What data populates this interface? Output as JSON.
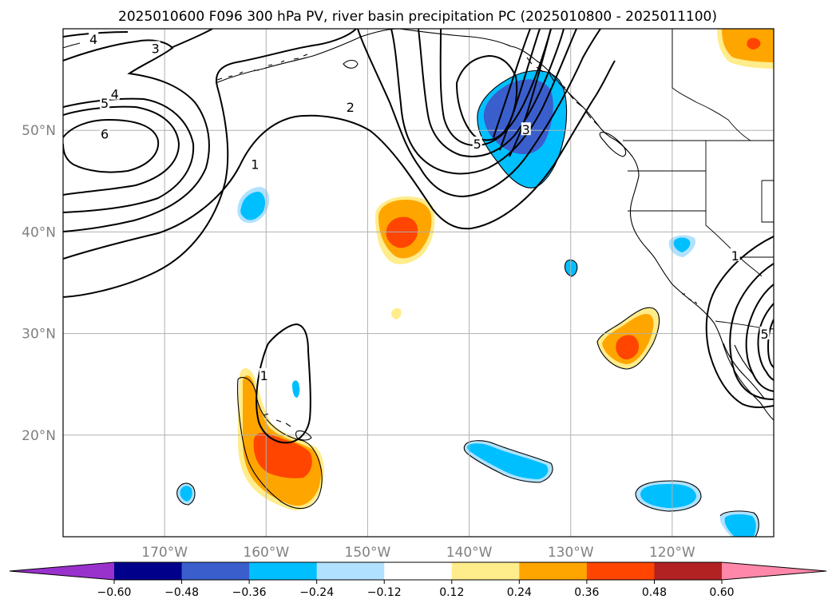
{
  "title": "2025010600 F096 300 hPa PV, river basin precipitation PC (2025010800 - 2025011100)",
  "map": {
    "lon_range": [
      -180,
      -110
    ],
    "lat_range": [
      10,
      60
    ],
    "lon_ticks": [
      {
        "value": -170,
        "label": "170°W"
      },
      {
        "value": -160,
        "label": "160°W"
      },
      {
        "value": -150,
        "label": "150°W"
      },
      {
        "value": -140,
        "label": "140°W"
      },
      {
        "value": -130,
        "label": "130°W"
      },
      {
        "value": -120,
        "label": "120°W"
      }
    ],
    "lat_ticks": [
      {
        "value": 20,
        "label": "20°N"
      },
      {
        "value": 30,
        "label": "30°N"
      },
      {
        "value": 40,
        "label": "40°N"
      },
      {
        "value": 50,
        "label": "50°N"
      }
    ],
    "grid": true,
    "gridline_color": "#b0b0b0",
    "contour_field": "300 hPa PV",
    "contour_levels": [
      1,
      2,
      3,
      4,
      5,
      6
    ],
    "contour_labels": [
      {
        "text": "4",
        "lon": -177,
        "lat": 58.9
      },
      {
        "text": "3",
        "lon": -170.9,
        "lat": 58.0
      },
      {
        "text": "4",
        "lon": -174.9,
        "lat": 53.5
      },
      {
        "text": "5",
        "lon": -175.9,
        "lat": 52.6
      },
      {
        "text": "6",
        "lon": -175.9,
        "lat": 49.6
      },
      {
        "text": "2",
        "lon": -151.7,
        "lat": 52.2
      },
      {
        "text": "1",
        "lon": -161.1,
        "lat": 46.6
      },
      {
        "text": "5",
        "lon": -139.2,
        "lat": 48.6
      },
      {
        "text": "3",
        "lon": -134.4,
        "lat": 50.0
      },
      {
        "text": "1",
        "lon": -160.2,
        "lat": 25.8
      },
      {
        "text": "1",
        "lon": -113.8,
        "lat": 37.6
      },
      {
        "text": "5",
        "lon": -110.9,
        "lat": 29.9
      }
    ]
  },
  "colorbar": {
    "extend": "both",
    "levels": [
      -0.6,
      -0.48,
      -0.36,
      -0.24,
      -0.12,
      0.12,
      0.24,
      0.36,
      0.48,
      0.6
    ],
    "labels": [
      "−0.60",
      "−0.48",
      "−0.36",
      "−0.24",
      "−0.12",
      "0.12",
      "0.24",
      "0.36",
      "0.48",
      "0.60"
    ],
    "colors": [
      "#9932cc",
      "#00008b",
      "#3a5fcd",
      "#00bfff",
      "#b0e2ff",
      "#ffffff",
      "#ffec8b",
      "#ffa500",
      "#ff4500",
      "#b22222",
      "#ff88aa"
    ]
  }
}
